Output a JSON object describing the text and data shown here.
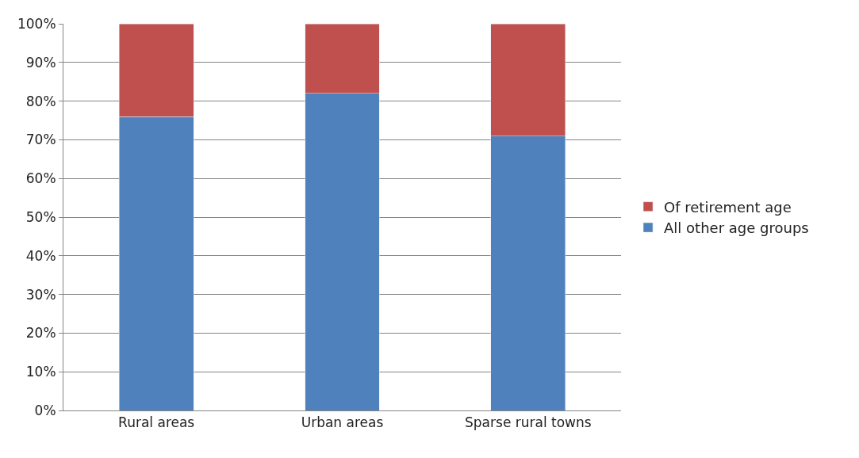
{
  "chart_data": {
    "type": "bar",
    "stacked": true,
    "categories": [
      "Rural areas",
      "Urban areas",
      "Sparse rural towns"
    ],
    "series": [
      {
        "name": "All other age groups",
        "color": "#4f81bd",
        "values": [
          76,
          82,
          71
        ]
      },
      {
        "name": "Of retirement age",
        "color": "#c0504d",
        "values": [
          24,
          18,
          29
        ]
      }
    ],
    "ylim": [
      0,
      100
    ],
    "yticks": [
      {
        "value": 0,
        "label": "0%"
      },
      {
        "value": 10,
        "label": "10%"
      },
      {
        "value": 20,
        "label": "20%"
      },
      {
        "value": 30,
        "label": "30%"
      },
      {
        "value": 40,
        "label": "40%"
      },
      {
        "value": 50,
        "label": "50%"
      },
      {
        "value": 60,
        "label": "60%"
      },
      {
        "value": 70,
        "label": "70%"
      },
      {
        "value": 80,
        "label": "80%"
      },
      {
        "value": 90,
        "label": "90%"
      },
      {
        "value": 100,
        "label": "100%"
      }
    ],
    "grid": "y",
    "legend": "right"
  }
}
